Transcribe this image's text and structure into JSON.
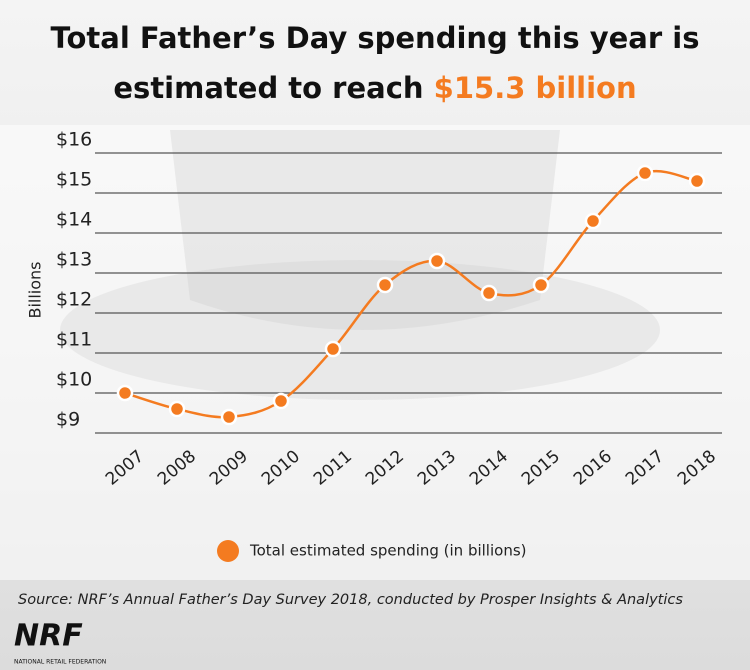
{
  "chart_data": {
    "type": "line",
    "title_line1": "Total Father’s Day spending this year is",
    "title_line2": "estimated to reach",
    "title_highlight": "$15.3 billion",
    "y_label": "Billions",
    "categories": [
      "2007",
      "2008",
      "2009",
      "2010",
      "2011",
      "2012",
      "2013",
      "2014",
      "2015",
      "2016",
      "2017",
      "2018"
    ],
    "series": [
      {
        "name": "Total estimated spending (in billions)",
        "color": "#f47b20",
        "values": [
          10.0,
          9.6,
          9.4,
          9.8,
          11.1,
          12.7,
          13.3,
          12.5,
          12.7,
          14.3,
          15.5,
          15.3
        ]
      }
    ],
    "ylim": [
      8.6,
      16.2
    ],
    "yticks": [
      {
        "value": 9,
        "label": "$9"
      },
      {
        "value": 10,
        "label": "$10"
      },
      {
        "value": 11,
        "label": "$11"
      },
      {
        "value": 12,
        "label": "$12"
      },
      {
        "value": 13,
        "label": "$13"
      },
      {
        "value": 14,
        "label": "$14"
      },
      {
        "value": 15,
        "label": "$15"
      },
      {
        "value": 16,
        "label": "$16"
      }
    ],
    "grid": true,
    "source": "Source: NRF’s Annual Father’s Day Survey 2018, conducted by Prosper Insights & Analytics",
    "logo": "NRF",
    "logo_subtitle": "NATIONAL RETAIL FEDERATION"
  }
}
